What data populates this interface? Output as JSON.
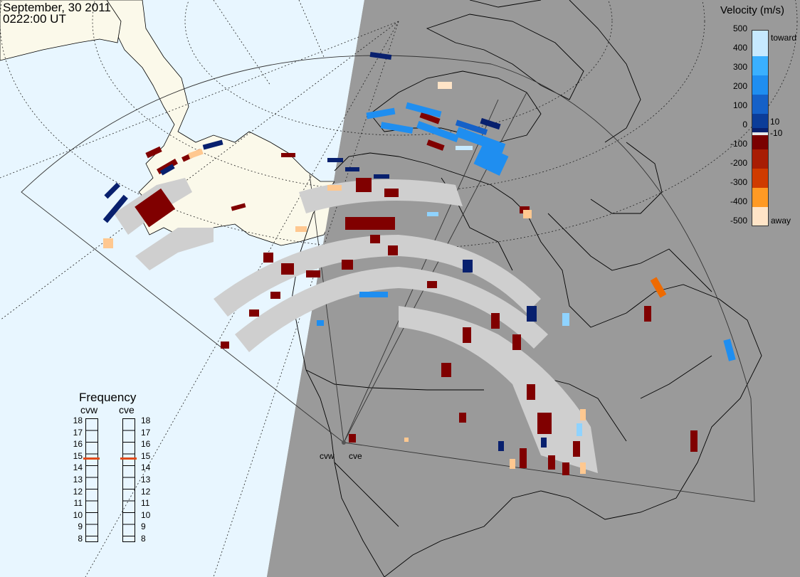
{
  "header": {
    "date": "September, 30 2011",
    "time": "0222:00 UT"
  },
  "velocity_legend": {
    "title": "Velocity (m/s)",
    "ticks": [
      "500",
      "400",
      "300",
      "200",
      "100",
      "10",
      "0",
      "-10",
      "-100",
      "-200",
      "-300",
      "-400",
      "-500"
    ],
    "toward_label": "toward",
    "away_label": "away",
    "colors": [
      "#c6e9ff",
      "#8fd3ff",
      "#3ab0ff",
      "#1f8ef0",
      "#1561c8",
      "#0b3d99",
      "#08206e",
      "#7a0000",
      "#8a0a0a",
      "#a81d04",
      "#cf3b00",
      "#ee6a00",
      "#ff9a24",
      "#ffc890",
      "#ffe4c7"
    ]
  },
  "frequency_legend": {
    "title": "Frequency",
    "radars": [
      "cvw",
      "cve"
    ],
    "ticks": [
      "18",
      "17",
      "16",
      "15",
      "14",
      "13",
      "12",
      "11",
      "10",
      "9",
      "8"
    ],
    "cvw_selected": 15,
    "cve_selected": 15,
    "marker_color": "#e04a1a"
  },
  "radar_sites": [
    {
      "label": "cvw"
    },
    {
      "label": "cve"
    }
  ],
  "colors": {
    "ocean_day": "#e8f6ff",
    "land_day": "#fbf9ea",
    "night_shade": "#9a9a9a",
    "no_data_gray": "#cfcfcf",
    "ground_scatter": "#a8a8a8"
  }
}
